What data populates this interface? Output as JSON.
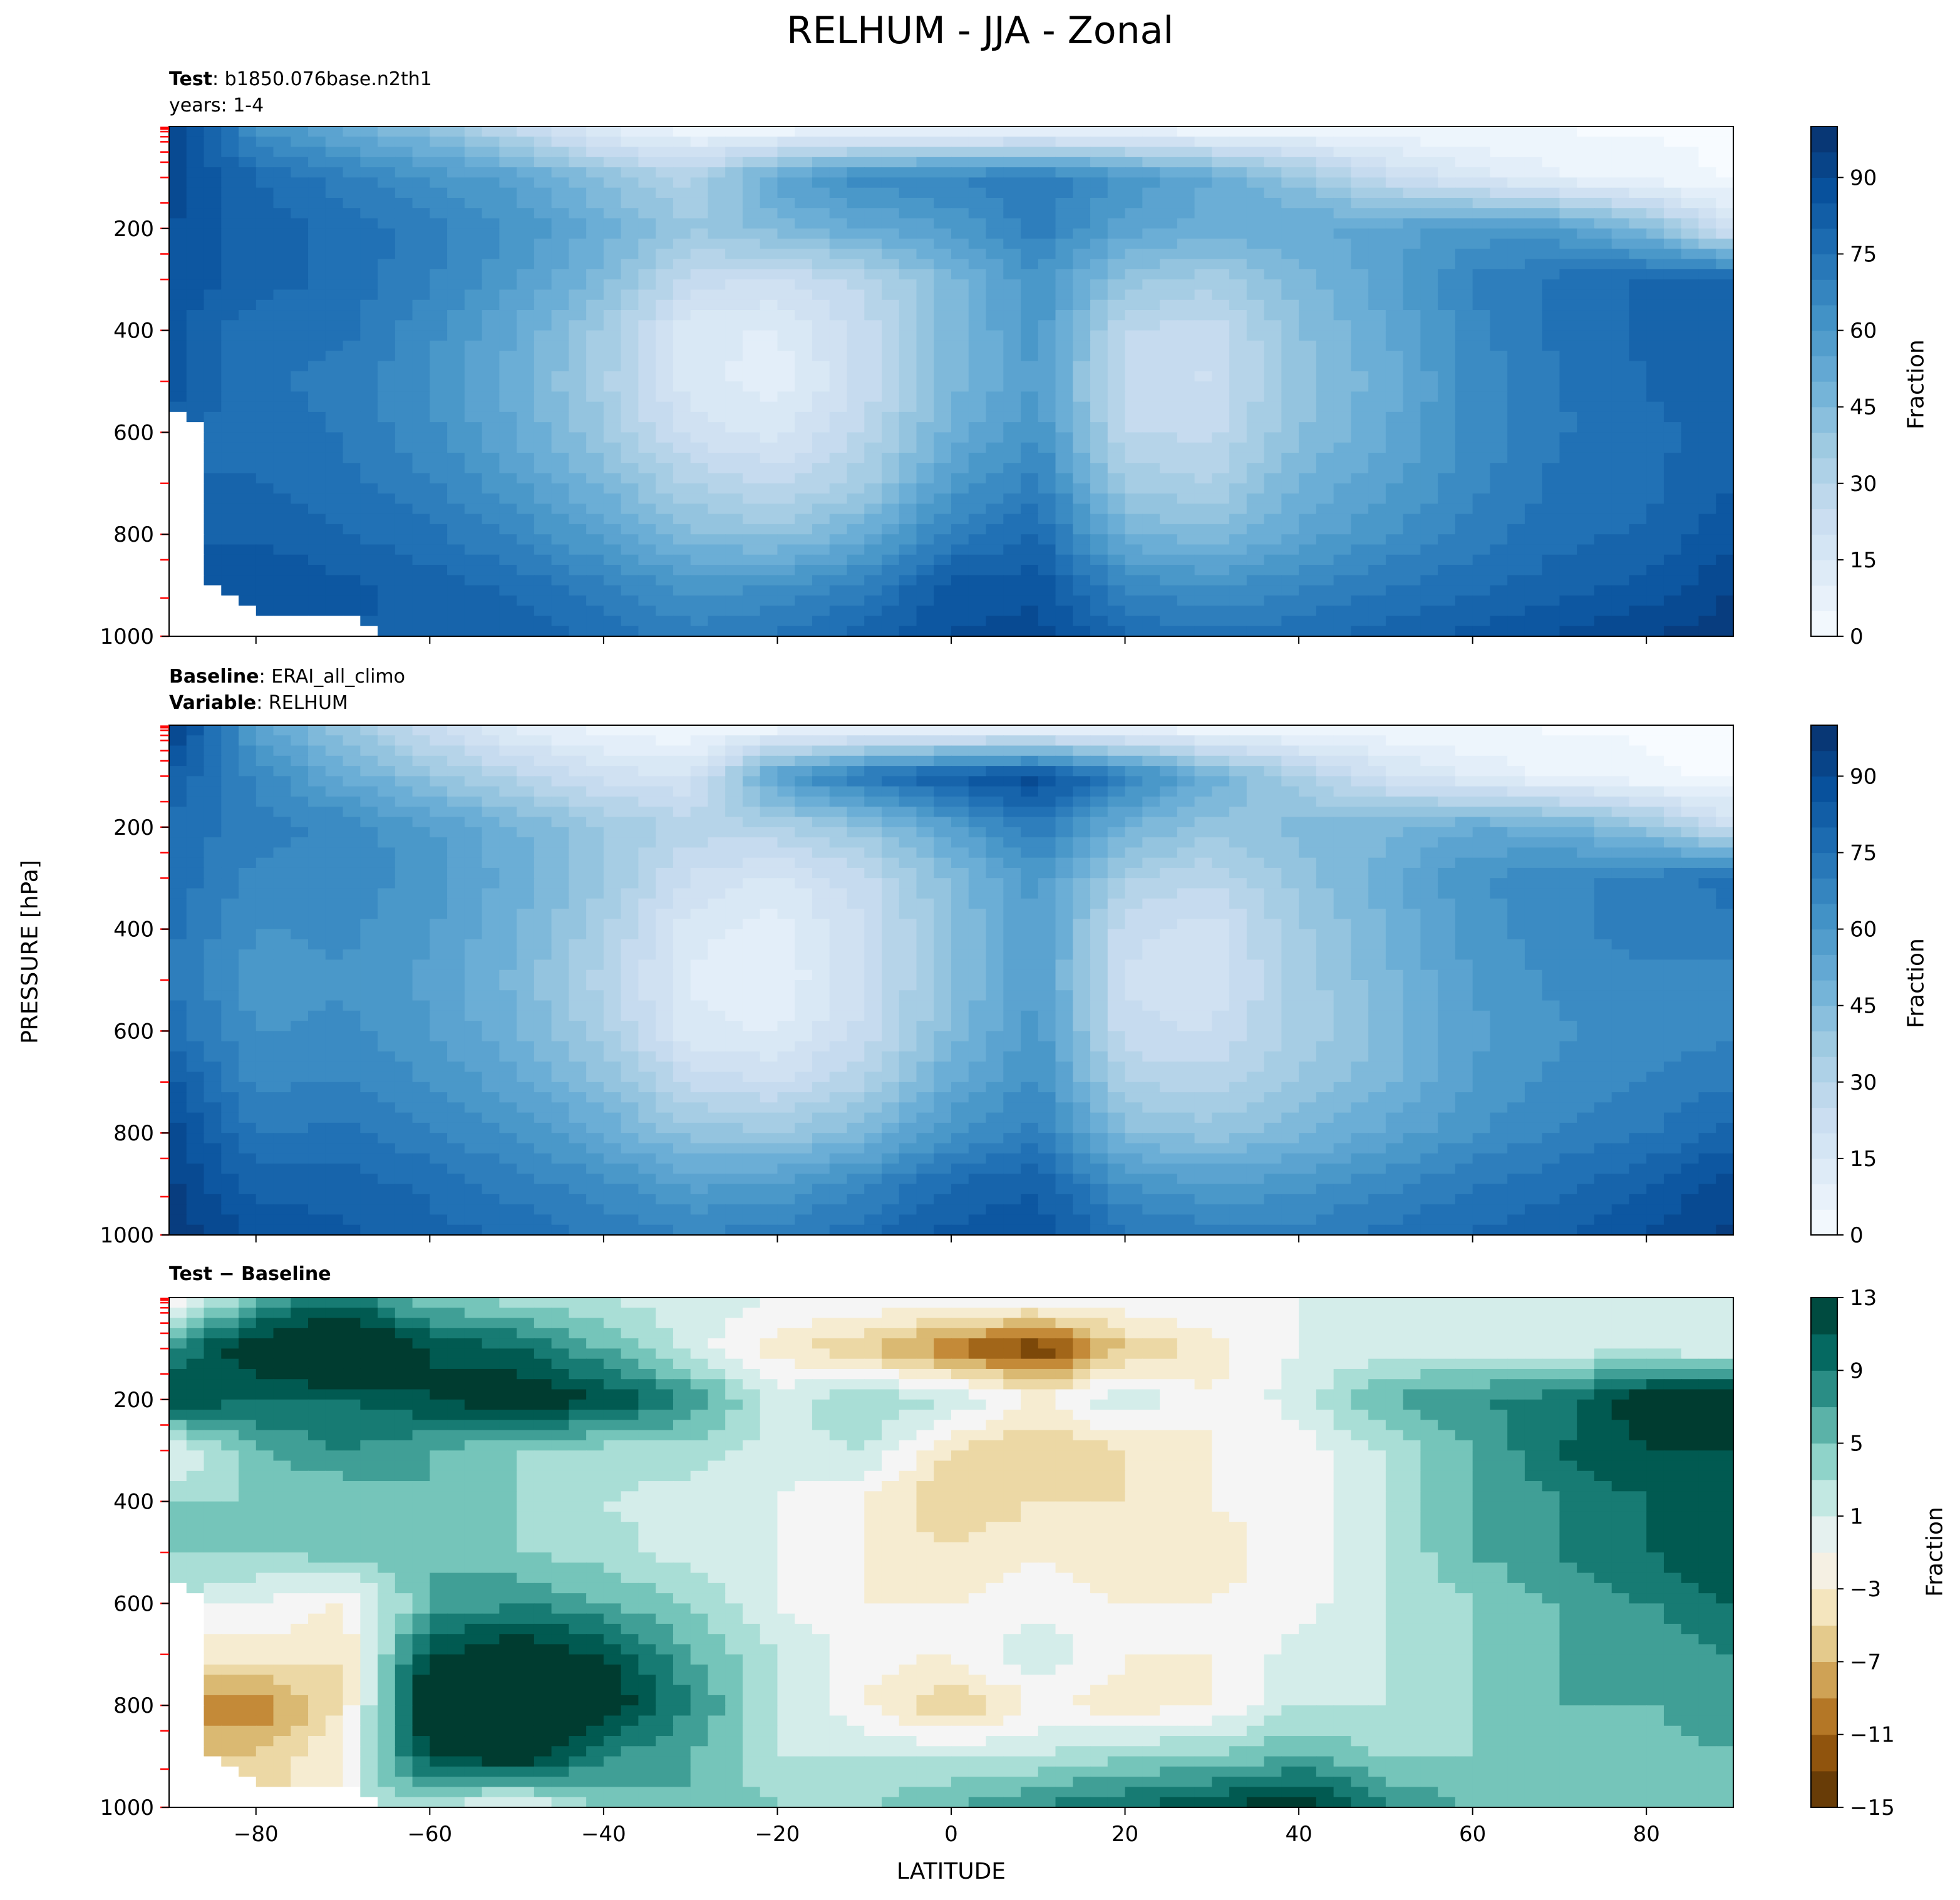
{
  "figure": {
    "title": "RELHUM - JJA - Zonal",
    "ylabel": "PRESSURE [hPa]",
    "xlabel": "LATITUDE"
  },
  "chart_data": [
    {
      "type": "heatmap",
      "panel": "test",
      "title_lines": [
        {
          "bold": "Test",
          "text": ": b1850.076base.n2th1"
        },
        {
          "bold": "",
          "text": "years: 1-4"
        }
      ],
      "x": [
        -90,
        -80,
        -70,
        -60,
        -50,
        -40,
        -30,
        -20,
        -10,
        0,
        10,
        20,
        30,
        40,
        50,
        60,
        70,
        80,
        90
      ],
      "y": [
        0,
        100,
        200,
        300,
        400,
        500,
        600,
        700,
        800,
        900,
        1000
      ],
      "values": [
        [
          95,
          62,
          50,
          40,
          25,
          10,
          4,
          2,
          2,
          2,
          2,
          2,
          2,
          2,
          2,
          2,
          2,
          2,
          2
        ],
        [
          90,
          78,
          70,
          62,
          55,
          42,
          30,
          55,
          65,
          68,
          72,
          62,
          52,
          40,
          25,
          15,
          8,
          4,
          2
        ],
        [
          88,
          80,
          76,
          70,
          62,
          50,
          38,
          45,
          52,
          58,
          70,
          55,
          50,
          52,
          55,
          60,
          58,
          45,
          18
        ],
        [
          86,
          80,
          76,
          68,
          58,
          45,
          25,
          22,
          30,
          45,
          62,
          40,
          35,
          45,
          55,
          68,
          74,
          78,
          80
        ],
        [
          84,
          74,
          74,
          64,
          52,
          36,
          14,
          12,
          24,
          45,
          60,
          28,
          24,
          42,
          52,
          66,
          74,
          78,
          80
        ],
        [
          84,
          74,
          70,
          62,
          50,
          34,
          14,
          10,
          24,
          45,
          58,
          24,
          22,
          40,
          50,
          64,
          72,
          78,
          80
        ],
        [
          null,
          76,
          72,
          64,
          52,
          38,
          20,
          16,
          28,
          50,
          62,
          28,
          26,
          42,
          52,
          64,
          72,
          76,
          80
        ],
        [
          null,
          78,
          74,
          68,
          58,
          46,
          32,
          26,
          36,
          58,
          70,
          36,
          32,
          48,
          56,
          66,
          74,
          76,
          82
        ],
        [
          null,
          82,
          78,
          74,
          66,
          56,
          44,
          40,
          50,
          70,
          78,
          48,
          44,
          54,
          62,
          70,
          76,
          78,
          86
        ],
        [
          null,
          86,
          84,
          80,
          76,
          68,
          60,
          62,
          70,
          84,
          86,
          66,
          62,
          66,
          72,
          76,
          80,
          84,
          92
        ],
        [
          null,
          null,
          null,
          82,
          82,
          76,
          70,
          74,
          80,
          88,
          90,
          78,
          74,
          76,
          80,
          84,
          88,
          92,
          96
        ]
      ],
      "colorbar": {
        "label": "Fraction",
        "ticks": [
          0,
          15,
          30,
          45,
          60,
          75,
          90
        ],
        "range": [
          0,
          100
        ]
      },
      "colormap": [
        "#f7fbff",
        "#deebf7",
        "#c6dbef",
        "#9ecae1",
        "#6baed6",
        "#4292c6",
        "#2171b5",
        "#08519c",
        "#08306b"
      ]
    },
    {
      "type": "heatmap",
      "panel": "baseline",
      "title_lines": [
        {
          "bold": "Baseline",
          "text": ": ERAI_all_climo"
        },
        {
          "bold": "Variable",
          "text": ": RELHUM"
        }
      ],
      "x": [
        -90,
        -80,
        -70,
        -60,
        -50,
        -40,
        -30,
        -20,
        -10,
        0,
        10,
        20,
        30,
        40,
        50,
        60,
        70,
        80,
        90
      ],
      "y": [
        0,
        100,
        200,
        300,
        400,
        500,
        600,
        700,
        800,
        900,
        1000
      ],
      "values": [
        [
          96,
          55,
          38,
          22,
          10,
          4,
          2,
          2,
          2,
          2,
          2,
          2,
          2,
          2,
          2,
          2,
          2,
          2,
          2
        ],
        [
          82,
          66,
          52,
          40,
          30,
          20,
          18,
          58,
          74,
          84,
          90,
          70,
          50,
          34,
          20,
          12,
          6,
          3,
          2
        ],
        [
          76,
          70,
          66,
          58,
          48,
          38,
          30,
          32,
          40,
          56,
          72,
          48,
          40,
          44,
          46,
          52,
          50,
          40,
          22
        ],
        [
          76,
          66,
          66,
          60,
          50,
          38,
          22,
          16,
          26,
          44,
          60,
          34,
          28,
          40,
          50,
          62,
          66,
          70,
          74
        ],
        [
          74,
          62,
          64,
          58,
          48,
          34,
          14,
          10,
          22,
          42,
          58,
          24,
          20,
          36,
          48,
          60,
          66,
          70,
          72
        ],
        [
          72,
          60,
          62,
          56,
          46,
          30,
          12,
          8,
          22,
          42,
          58,
          22,
          20,
          34,
          46,
          58,
          64,
          66,
          64
        ],
        [
          76,
          62,
          64,
          58,
          48,
          34,
          14,
          12,
          24,
          44,
          60,
          24,
          22,
          34,
          44,
          56,
          62,
          64,
          66
        ],
        [
          84,
          66,
          68,
          62,
          54,
          42,
          26,
          22,
          32,
          52,
          64,
          32,
          30,
          38,
          46,
          58,
          64,
          68,
          72
        ],
        [
          90,
          72,
          74,
          68,
          62,
          52,
          40,
          38,
          46,
          62,
          70,
          44,
          40,
          46,
          54,
          62,
          68,
          72,
          80
        ],
        [
          94,
          80,
          80,
          76,
          70,
          64,
          56,
          58,
          66,
          78,
          82,
          62,
          58,
          60,
          66,
          72,
          76,
          82,
          90
        ],
        [
          96,
          86,
          84,
          80,
          76,
          72,
          68,
          70,
          76,
          84,
          86,
          74,
          70,
          70,
          74,
          78,
          82,
          88,
          94
        ]
      ],
      "colorbar": {
        "label": "Fraction",
        "ticks": [
          0,
          15,
          30,
          45,
          60,
          75,
          90
        ],
        "range": [
          0,
          100
        ]
      },
      "colormap": [
        "#f7fbff",
        "#deebf7",
        "#c6dbef",
        "#9ecae1",
        "#6baed6",
        "#4292c6",
        "#2171b5",
        "#08519c",
        "#08306b"
      ]
    },
    {
      "type": "heatmap",
      "panel": "difference",
      "title_lines": [
        {
          "bold": "Test − Baseline",
          "text": ""
        }
      ],
      "x": [
        -90,
        -80,
        -70,
        -60,
        -50,
        -40,
        -30,
        -20,
        -10,
        0,
        10,
        20,
        30,
        40,
        50,
        60,
        70,
        80,
        90
      ],
      "y": [
        0,
        100,
        200,
        300,
        400,
        500,
        600,
        700,
        800,
        900,
        1000
      ],
      "values": [
        [
          -4,
          6,
          9,
          4,
          3,
          2,
          1,
          0,
          0,
          0,
          0,
          0,
          0,
          0,
          0,
          0,
          0,
          0,
          0
        ],
        [
          8,
          14,
          18,
          12,
          10,
          6,
          1,
          -3,
          -6,
          -10,
          -14,
          -6,
          -3,
          0,
          1,
          1,
          1,
          1,
          0
        ],
        [
          12,
          10,
          10,
          12,
          14,
          12,
          8,
          1,
          4,
          2,
          -2,
          2,
          -2,
          1,
          6,
          8,
          9,
          14,
          16
        ],
        [
          -1,
          6,
          8,
          6,
          4,
          3,
          3,
          1,
          2,
          -4,
          -6,
          -4,
          -2,
          -1,
          2,
          6,
          10,
          12,
          12
        ],
        [
          4,
          4,
          4,
          6,
          4,
          2,
          1,
          0,
          -2,
          -6,
          -4,
          -4,
          -2,
          -1,
          2,
          6,
          8,
          10,
          12
        ],
        [
          4,
          4,
          5,
          6,
          4,
          3,
          1,
          0,
          -2,
          -4,
          -2,
          -4,
          -3,
          -1,
          2,
          6,
          8,
          10,
          12
        ],
        [
          null,
          0,
          -2,
          6,
          8,
          6,
          4,
          0,
          -2,
          -2,
          -1,
          -2,
          -2,
          -1,
          2,
          4,
          6,
          8,
          10
        ],
        [
          null,
          -3,
          -4,
          12,
          14,
          12,
          6,
          2,
          -1,
          -2,
          2,
          -2,
          -2,
          1,
          2,
          4,
          6,
          6,
          8
        ],
        [
          null,
          -10,
          -4,
          16,
          18,
          14,
          8,
          2,
          -2,
          -6,
          -2,
          -3,
          -2,
          2,
          2,
          4,
          6,
          6,
          8
        ],
        [
          null,
          -6,
          -2,
          12,
          14,
          8,
          6,
          2,
          2,
          2,
          2,
          4,
          4,
          6,
          4,
          4,
          4,
          4,
          6
        ],
        [
          null,
          null,
          null,
          2,
          -1,
          4,
          6,
          4,
          4,
          6,
          8,
          10,
          12,
          14,
          8,
          6,
          6,
          6,
          6
        ]
      ],
      "colorbar": {
        "label": "Fraction",
        "ticks": [
          -15,
          -11,
          -7,
          -3,
          1,
          5,
          9,
          13
        ],
        "range": [
          -15,
          13
        ]
      },
      "colormap": [
        "#543005",
        "#8c510a",
        "#bf812d",
        "#dfc27d",
        "#f6e8c3",
        "#f5f5f5",
        "#c7eae5",
        "#80cdc1",
        "#35978f",
        "#01665e",
        "#003c30"
      ]
    }
  ],
  "axes": {
    "x_ticks": [
      -80,
      -60,
      -40,
      -20,
      0,
      20,
      40,
      60,
      80
    ],
    "x_tick_labels": [
      "−80",
      "−60",
      "−40",
      "−20",
      "0",
      "20",
      "40",
      "60",
      "80"
    ],
    "x_range": [
      -90,
      90
    ],
    "y_ticks": [
      200,
      400,
      600,
      800,
      1000
    ],
    "y_range": [
      0,
      1000
    ],
    "y_inverted": true,
    "level_tick_color": "#ff0000",
    "level_ticks": [
      2,
      5,
      10,
      20,
      30,
      50,
      70,
      100,
      150,
      200,
      250,
      300,
      400,
      500,
      600,
      700,
      800,
      850,
      925,
      1000
    ]
  }
}
